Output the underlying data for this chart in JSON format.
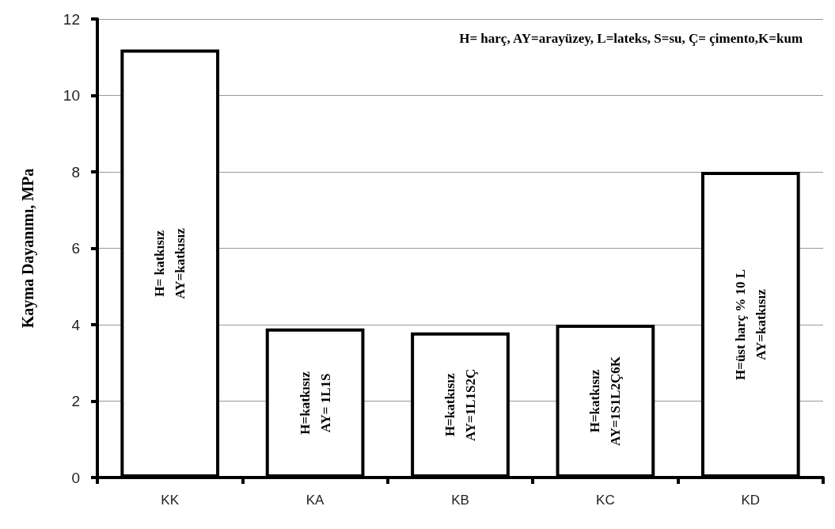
{
  "chart_data": {
    "type": "bar",
    "ylabel": "Kayma Dayanımı, MPa",
    "categories": [
      "KK",
      "KA",
      "KB",
      "KC",
      "KD"
    ],
    "values": [
      11.2,
      3.9,
      3.8,
      4.0,
      8.0
    ],
    "color": "#ffffff",
    "ylim": [
      0,
      12
    ],
    "yticks": [
      0,
      2,
      4,
      6,
      8,
      10,
      12
    ],
    "grid": "y",
    "annotations": [
      "H= harç, AY=arayüzey, L=lateks, S=su, Ç= çimento,K=kum",
      "H= katkısız\nAY=katkısız",
      "H=katkısız\nAY= 1L1S",
      "H=katkısız\nAY=1L1S2Ç",
      "H=katkısız\nAY=1S1L2Ç6K",
      "H=üst harç % 10 L\nAY=katkısız"
    ]
  }
}
